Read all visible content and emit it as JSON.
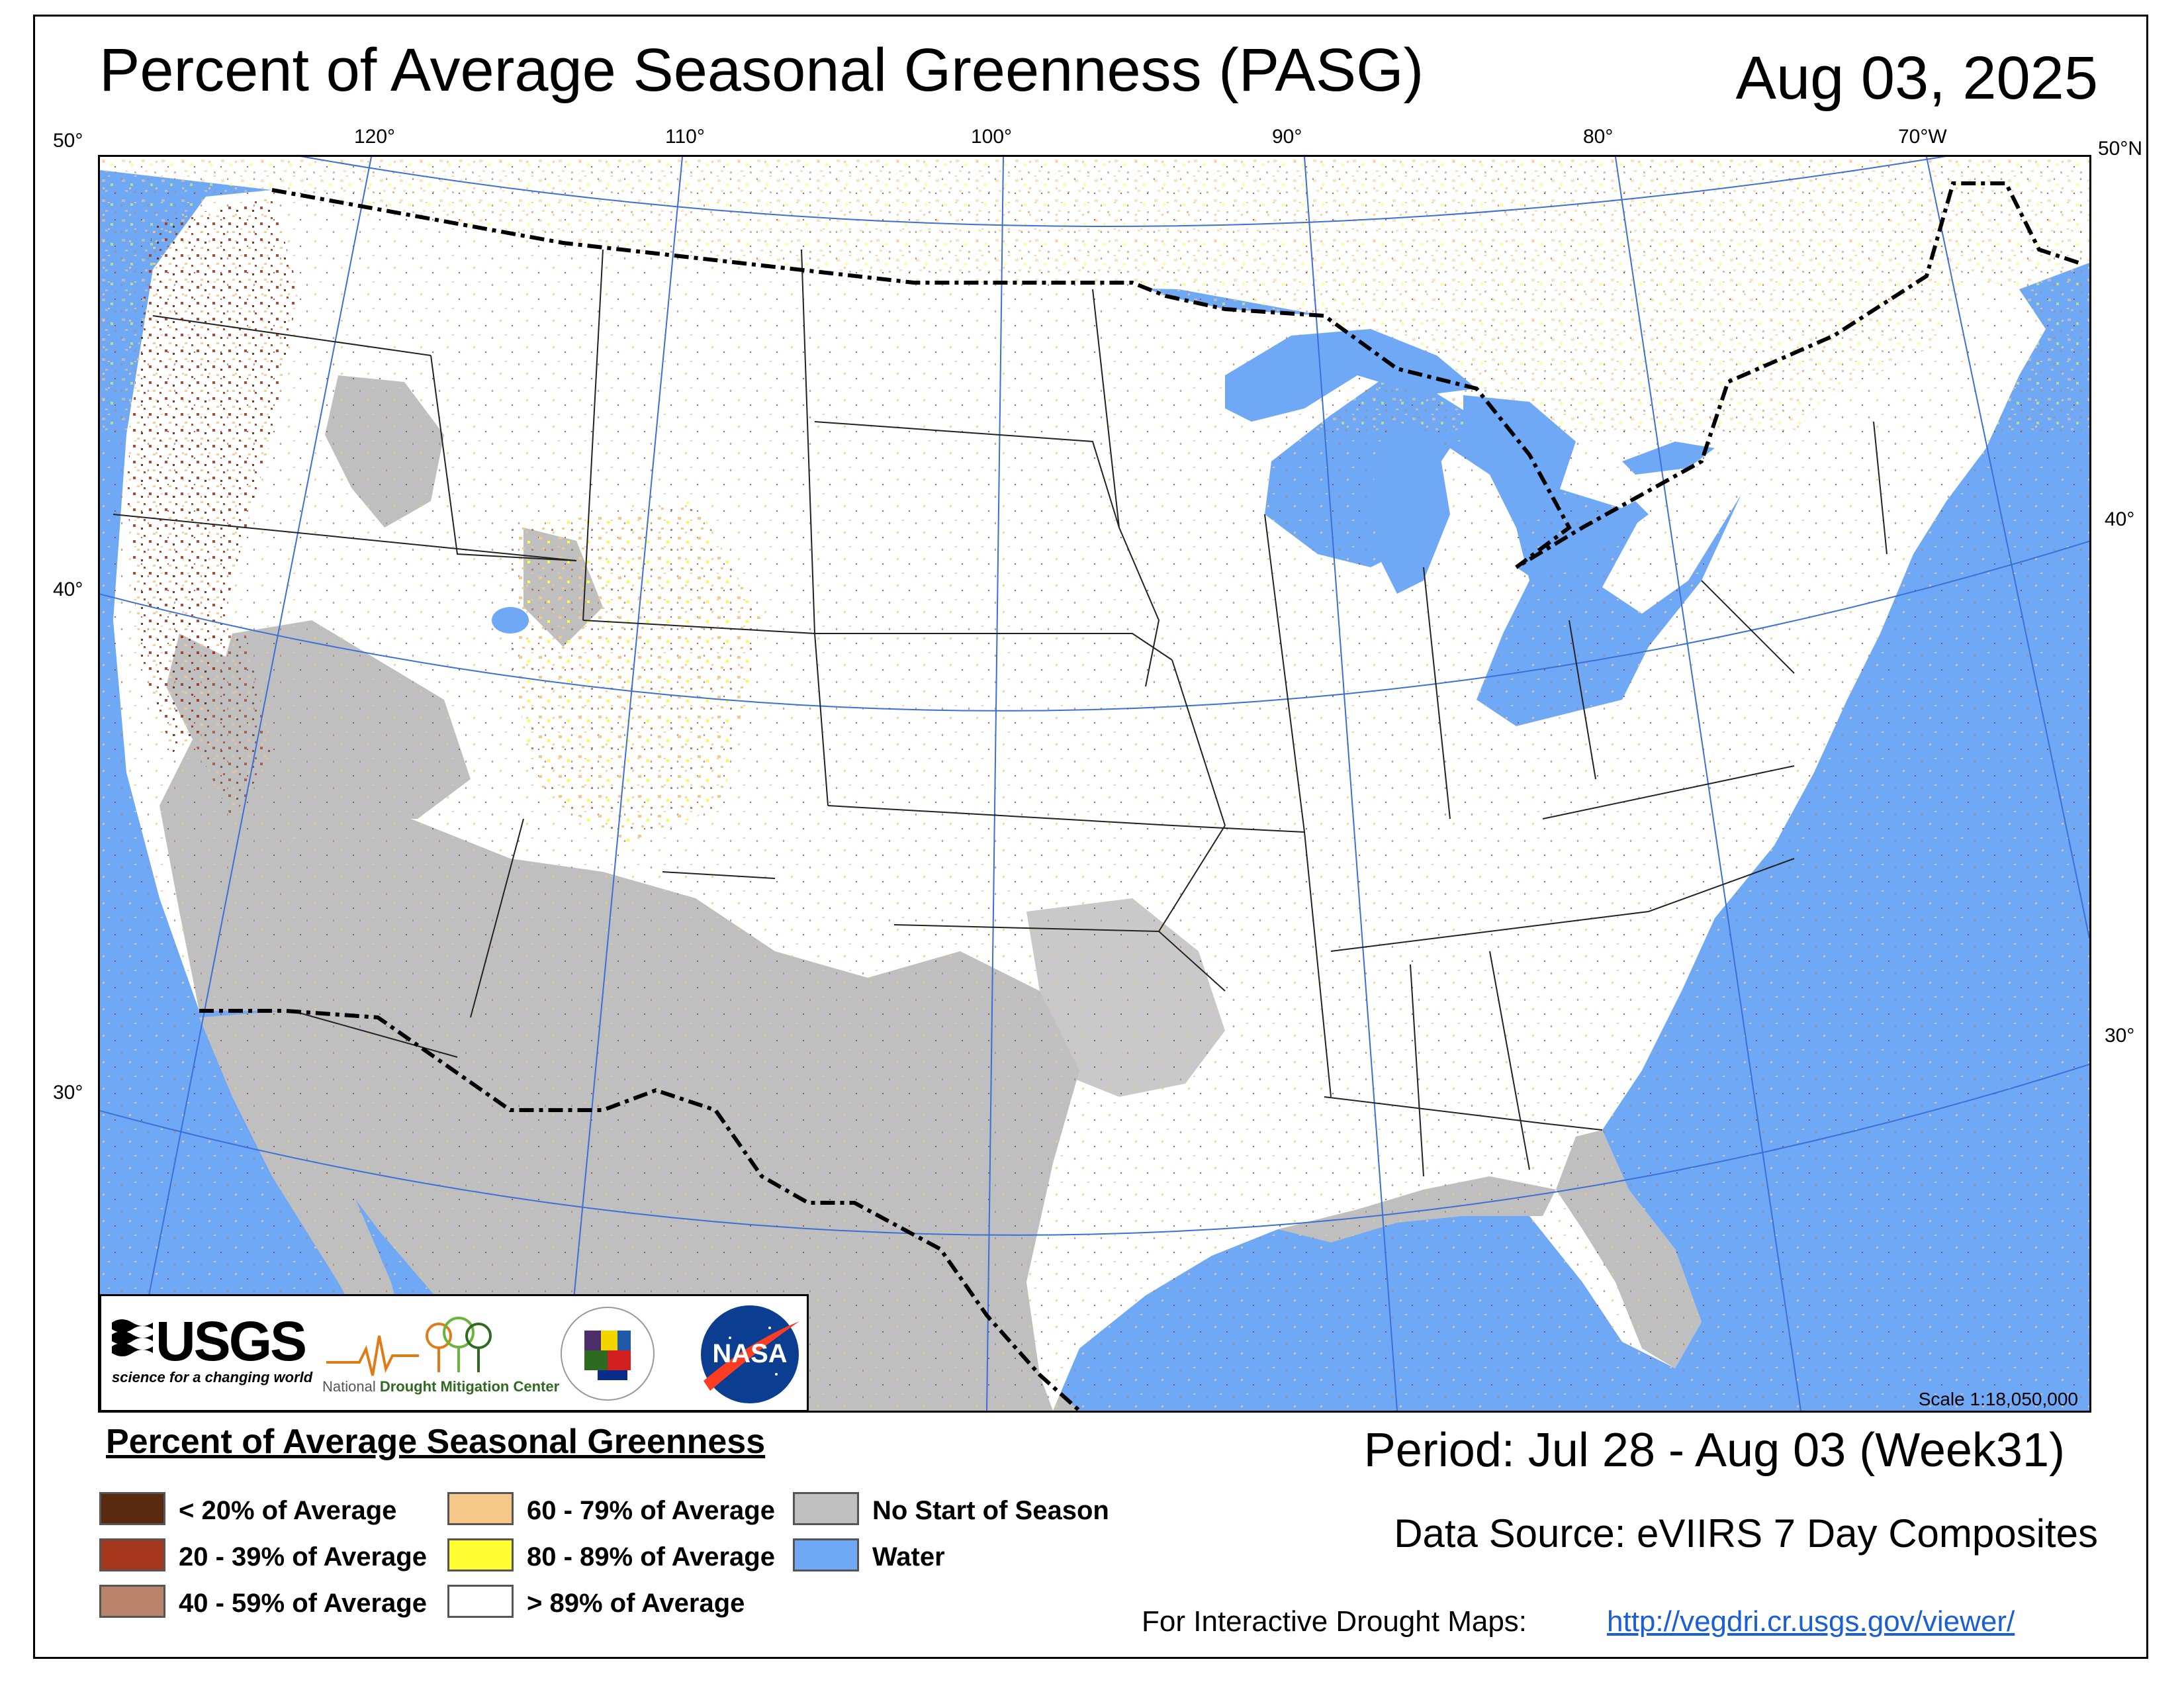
{
  "header": {
    "title": "Percent of Average Seasonal Greenness (PASG)",
    "date": "Aug 03, 2025"
  },
  "map": {
    "graticule_labels_top": [
      "50°",
      "120°",
      "110°",
      "100°",
      "90°",
      "80°",
      "70°W",
      "50°N"
    ],
    "graticule_labels_left": [
      "40°",
      "30°"
    ],
    "graticule_labels_right": [
      "40°",
      "30°"
    ],
    "scale": "Scale 1:18,050,000",
    "colors": {
      "water": "#6fa8f5",
      "no_start": "#bfbfbf",
      "border": "#000000",
      "graticule": "#3c6fd8"
    }
  },
  "logos": {
    "usgs_word": "USGS",
    "usgs_tagline": "science for a changing world",
    "ndmc_prefix": "National",
    "ndmc_name": "Drought Mitigation Center",
    "nasa_word": "NASA"
  },
  "legend": {
    "title": "Percent of Average Seasonal Greenness",
    "items": [
      {
        "label": "< 20% of Average",
        "color": "#5a2a10"
      },
      {
        "label": "20 - 39% of Average",
        "color": "#a5361e"
      },
      {
        "label": "40 - 59% of Average",
        "color": "#b9826a"
      },
      {
        "label": "60 - 79% of Average",
        "color": "#f5c88a"
      },
      {
        "label": "80 - 89% of Average",
        "color": "#ffff33"
      },
      {
        "label": "> 89% of Average",
        "color": "#ffffff"
      },
      {
        "label": "No Start of Season",
        "color": "#bfbfbf"
      },
      {
        "label": "Water",
        "color": "#6fa8f5"
      }
    ]
  },
  "footer": {
    "period": "Period:  Jul 28 - Aug 03 (Week31)",
    "data_source": "Data Source:  eVIIRS 7 Day Composites",
    "interactive_label": "For Interactive Drought Maps:",
    "interactive_url": "http://vegdri.cr.usgs.gov/viewer/"
  }
}
